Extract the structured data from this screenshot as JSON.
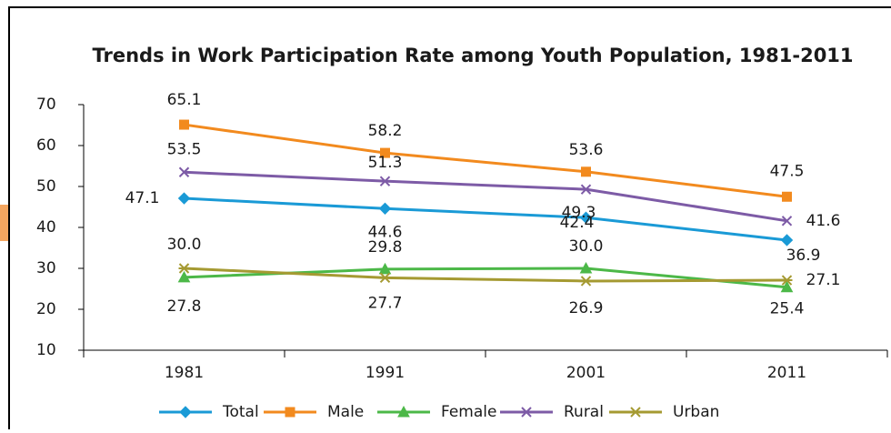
{
  "chart_data": {
    "type": "line",
    "title": "Trends in Work Participation Rate among Youth Population, 1981-2011",
    "categories": [
      "1981",
      "1991",
      "2001",
      "2011"
    ],
    "ylim": [
      10,
      70
    ],
    "yticks": [
      10,
      20,
      30,
      40,
      50,
      60,
      70
    ],
    "legend": "bottom",
    "series": [
      {
        "name": "Total",
        "color": "#1a9ad6",
        "marker": "diamond",
        "values": [
          47.1,
          44.6,
          42.4,
          36.9
        ]
      },
      {
        "name": "Male",
        "color": "#f28a1e",
        "marker": "square",
        "values": [
          65.1,
          58.2,
          53.6,
          47.5
        ]
      },
      {
        "name": "Female",
        "color": "#4cb848",
        "marker": "triangle",
        "values": [
          27.8,
          29.8,
          30.0,
          25.4
        ],
        "value_labels": [
          "27.8",
          "29.8",
          "30.0",
          "25.4"
        ]
      },
      {
        "name": "Rural",
        "color": "#7d5ba6",
        "marker": "x",
        "values": [
          53.5,
          51.3,
          49.3,
          41.6
        ]
      },
      {
        "name": "Urban",
        "color": "#a59a32",
        "marker": "star",
        "values": [
          30.0,
          27.7,
          26.9,
          27.1
        ],
        "value_labels": [
          "30.0",
          "27.7",
          "26.9",
          "27.1"
        ]
      }
    ]
  }
}
